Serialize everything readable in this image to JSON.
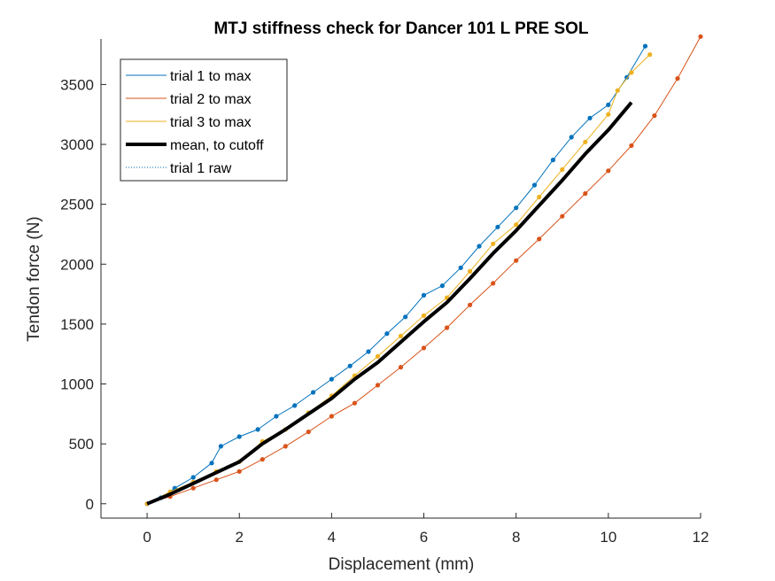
{
  "chart_data": {
    "type": "line",
    "title": "MTJ stiffness check for Dancer 101 L PRE SOL",
    "xlabel": "Displacement (mm)",
    "ylabel": "Tendon force (N)",
    "xlim": [
      -1,
      12
    ],
    "ylim": [
      -120,
      3880
    ],
    "xticks": [
      0,
      2,
      4,
      6,
      8,
      10,
      12
    ],
    "yticks": [
      0,
      500,
      1000,
      1500,
      2000,
      2500,
      3000,
      3500
    ],
    "grid": false,
    "legend_position": "top-left",
    "series": [
      {
        "name": "trial 1 to max",
        "color": "#0072BD",
        "style": "solid-thin",
        "x": [
          0,
          0.3,
          0.6,
          1.0,
          1.4,
          1.6,
          2.0,
          2.4,
          2.8,
          3.2,
          3.6,
          4.0,
          4.4,
          4.8,
          5.2,
          5.6,
          6.0,
          6.4,
          6.8,
          7.2,
          7.6,
          8.0,
          8.4,
          8.8,
          9.2,
          9.6,
          10.0,
          10.4,
          10.8
        ],
        "y": [
          0,
          50,
          130,
          220,
          340,
          480,
          560,
          620,
          730,
          820,
          930,
          1040,
          1150,
          1270,
          1420,
          1560,
          1740,
          1820,
          1970,
          2150,
          2310,
          2470,
          2660,
          2870,
          3060,
          3220,
          3330,
          3560,
          3820
        ]
      },
      {
        "name": "trial 2 to max",
        "color": "#D95319",
        "style": "solid-thin",
        "x": [
          0,
          0.5,
          1.0,
          1.5,
          2.0,
          2.5,
          3.0,
          3.5,
          4.0,
          4.5,
          5.0,
          5.5,
          6.0,
          6.5,
          7.0,
          7.5,
          8.0,
          8.5,
          9.0,
          9.5,
          10.0,
          10.5,
          11.0,
          11.5,
          12.0
        ],
        "y": [
          0,
          60,
          130,
          200,
          270,
          370,
          480,
          600,
          730,
          840,
          990,
          1140,
          1300,
          1470,
          1660,
          1840,
          2030,
          2210,
          2400,
          2590,
          2780,
          2990,
          3240,
          3550,
          3900
        ]
      },
      {
        "name": "trial 3 to max",
        "color": "#EDB120",
        "style": "solid-thin",
        "x": [
          0,
          0.5,
          1.0,
          1.5,
          2.0,
          2.5,
          3.0,
          3.5,
          4.0,
          4.5,
          5.0,
          5.5,
          6.0,
          6.5,
          7.0,
          7.5,
          8.0,
          8.5,
          9.0,
          9.5,
          10.0,
          10.2,
          10.5,
          10.9
        ],
        "y": [
          0,
          100,
          180,
          270,
          350,
          520,
          620,
          760,
          900,
          1070,
          1230,
          1400,
          1570,
          1720,
          1940,
          2170,
          2330,
          2560,
          2790,
          3020,
          3250,
          3450,
          3600,
          3750
        ]
      },
      {
        "name": "mean, to cutoff",
        "color": "#000000",
        "style": "solid-thick",
        "x": [
          0,
          0.5,
          1.0,
          1.5,
          2.0,
          2.5,
          3.0,
          3.5,
          4.0,
          4.5,
          5.0,
          5.5,
          6.0,
          6.5,
          7.0,
          7.5,
          8.0,
          8.5,
          9.0,
          9.5,
          10.0,
          10.5
        ],
        "y": [
          0,
          80,
          170,
          260,
          350,
          500,
          620,
          750,
          880,
          1040,
          1180,
          1350,
          1520,
          1680,
          1880,
          2090,
          2280,
          2490,
          2700,
          2920,
          3120,
          3350
        ]
      },
      {
        "name": "trial 1 raw",
        "color": "#0072BD",
        "style": "dotted",
        "x": [],
        "y": []
      }
    ]
  }
}
